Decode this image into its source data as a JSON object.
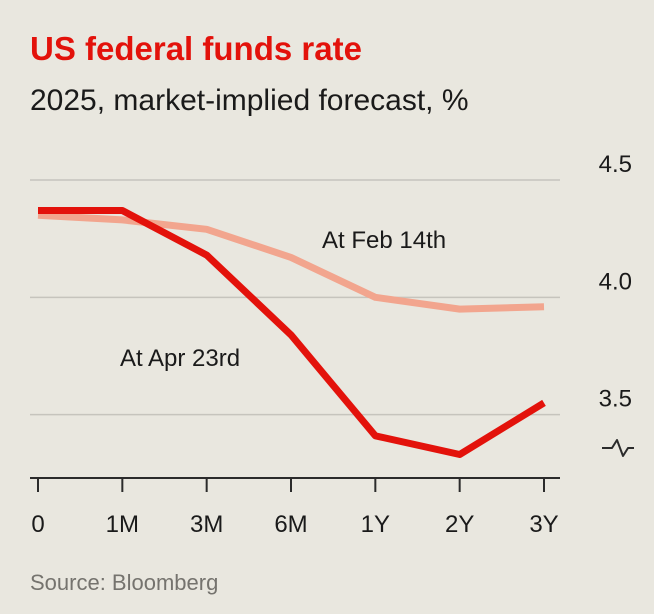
{
  "colors": {
    "background": "#e9e7df",
    "title": "#e3120b",
    "text": "#1a1a1a",
    "muted": "#75736e",
    "grid": "#c6c4bd",
    "axis": "#2b2b2b",
    "series_apr": "#e3120b",
    "series_feb": "#f2a58e"
  },
  "chart_data": {
    "type": "line",
    "title": "US federal funds rate",
    "subtitle": "2025, market-implied forecast, %",
    "categories": [
      "0",
      "1M",
      "3M",
      "6M",
      "1Y",
      "2Y",
      "3Y"
    ],
    "series": [
      {
        "name": "At Feb 14th",
        "values": [
          4.35,
          4.33,
          4.29,
          4.17,
          4.0,
          3.95,
          3.96
        ]
      },
      {
        "name": "At Apr 23rd",
        "values": [
          4.37,
          4.37,
          4.18,
          3.84,
          3.41,
          3.33,
          3.55
        ]
      }
    ],
    "y_ticks": [
      "4.5",
      "4.0",
      "3.5"
    ],
    "ylim": [
      3.23,
      4.5
    ],
    "axis_break": true,
    "y_axis_side": "right",
    "grid": true,
    "legend": "inline labels",
    "source": "Source: Bloomberg"
  }
}
